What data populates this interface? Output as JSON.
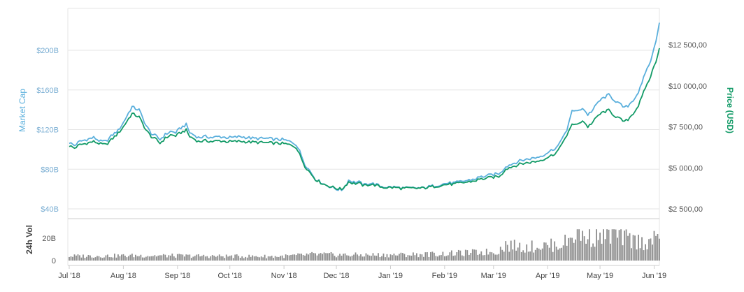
{
  "chart_data": {
    "type": "line",
    "colors": {
      "market_cap": "#5aafdc",
      "price": "#119a66",
      "volume": "#8c8c8c",
      "grid": "#e6e6e6",
      "tick_text": "#7aaed3"
    },
    "x_labels": [
      "Jul '18",
      "Aug '18",
      "Sep '18",
      "Oct '18",
      "Nov '18",
      "Dec '18",
      "Jan '19",
      "Feb '19",
      "Mar '19",
      "Apr '19",
      "May '19",
      "Jun '19"
    ],
    "left_axis": {
      "label": "Market Cap",
      "min": 40,
      "max": 240,
      "ticks": [
        {
          "value": 40,
          "label": "$40B"
        },
        {
          "value": 80,
          "label": "$80B"
        },
        {
          "value": 120,
          "label": "$120B"
        },
        {
          "value": 160,
          "label": "$160B"
        },
        {
          "value": 200,
          "label": "$200B"
        }
      ]
    },
    "right_axis": {
      "label": "Price (USD)",
      "min": 2500,
      "max": 12500,
      "ticks": [
        {
          "value": 2500,
          "label": "$2 500,00"
        },
        {
          "value": 5000,
          "label": "$5 000,00"
        },
        {
          "value": 7500,
          "label": "$7 500,00"
        },
        {
          "value": 10000,
          "label": "$10 000,00"
        },
        {
          "value": 12500,
          "label": "$12 500,00"
        }
      ]
    },
    "volume_axis": {
      "label": "24h Vol",
      "min": 0,
      "max": 30,
      "ticks": [
        {
          "value": 0,
          "label": "0"
        },
        {
          "value": 20,
          "label": "20B"
        }
      ]
    },
    "series": [
      {
        "name": "Market Cap",
        "axis": "left",
        "points": [
          [
            0,
            107
          ],
          [
            3,
            104
          ],
          [
            6,
            108
          ],
          [
            10,
            110
          ],
          [
            14,
            112
          ],
          [
            18,
            108
          ],
          [
            21,
            108
          ],
          [
            25,
            115
          ],
          [
            28,
            119
          ],
          [
            31,
            127
          ],
          [
            34,
            137
          ],
          [
            36,
            143
          ],
          [
            38,
            141
          ],
          [
            40,
            140
          ],
          [
            42,
            132
          ],
          [
            44,
            124
          ],
          [
            47,
            116
          ],
          [
            50,
            113
          ],
          [
            52,
            110
          ],
          [
            55,
            115
          ],
          [
            58,
            118
          ],
          [
            61,
            117
          ],
          [
            64,
            122
          ],
          [
            67,
            125
          ],
          [
            69,
            117
          ],
          [
            71,
            115
          ],
          [
            74,
            112
          ],
          [
            78,
            113
          ],
          [
            82,
            112
          ],
          [
            86,
            113
          ],
          [
            90,
            112
          ],
          [
            94,
            112
          ],
          [
            98,
            113
          ],
          [
            102,
            112
          ],
          [
            106,
            111
          ],
          [
            110,
            111
          ],
          [
            114,
            111
          ],
          [
            118,
            110
          ],
          [
            122,
            110
          ],
          [
            124,
            109
          ],
          [
            126,
            108
          ],
          [
            128,
            107
          ],
          [
            130,
            105
          ],
          [
            132,
            98
          ],
          [
            135,
            85
          ],
          [
            138,
            78
          ],
          [
            141,
            70
          ],
          [
            144,
            67
          ],
          [
            147,
            64
          ],
          [
            150,
            62
          ],
          [
            153,
            60
          ],
          [
            156,
            59
          ],
          [
            158,
            63
          ],
          [
            160,
            69
          ],
          [
            163,
            67
          ],
          [
            166,
            67
          ],
          [
            169,
            64
          ],
          [
            172,
            66
          ],
          [
            175,
            65
          ],
          [
            178,
            63
          ],
          [
            181,
            62
          ],
          [
            184,
            62
          ],
          [
            187,
            62
          ],
          [
            190,
            61
          ],
          [
            193,
            61
          ],
          [
            196,
            61
          ],
          [
            199,
            61
          ],
          [
            202,
            61
          ],
          [
            205,
            62
          ],
          [
            208,
            63
          ],
          [
            211,
            64
          ],
          [
            214,
            65
          ],
          [
            217,
            66
          ],
          [
            220,
            66
          ],
          [
            223,
            67
          ],
          [
            226,
            68
          ],
          [
            229,
            69
          ],
          [
            232,
            70
          ],
          [
            235,
            72
          ],
          [
            238,
            73
          ],
          [
            241,
            74
          ],
          [
            244,
            75
          ],
          [
            247,
            76
          ],
          [
            250,
            83
          ],
          [
            253,
            85
          ],
          [
            256,
            87
          ],
          [
            259,
            89
          ],
          [
            262,
            90
          ],
          [
            265,
            91
          ],
          [
            268,
            92
          ],
          [
            271,
            94
          ],
          [
            273,
            96
          ],
          [
            275,
            98
          ],
          [
            277,
            100
          ],
          [
            279,
            102
          ],
          [
            281,
            106
          ],
          [
            283,
            115
          ],
          [
            285,
            118
          ],
          [
            288,
            140
          ],
          [
            291,
            138
          ],
          [
            294,
            142
          ],
          [
            297,
            135
          ],
          [
            300,
            140
          ],
          [
            303,
            148
          ],
          [
            306,
            152
          ],
          [
            309,
            155
          ],
          [
            312,
            150
          ],
          [
            315,
            146
          ],
          [
            318,
            142
          ],
          [
            320,
            144
          ],
          [
            322,
            148
          ],
          [
            324,
            152
          ],
          [
            326,
            158
          ],
          [
            328,
            166
          ],
          [
            330,
            178
          ],
          [
            332,
            185
          ],
          [
            334,
            195
          ],
          [
            336,
            210
          ],
          [
            338,
            228
          ]
        ]
      },
      {
        "name": "Price (USD)",
        "axis": "right",
        "points": [
          [
            0,
            6350
          ],
          [
            3,
            6200
          ],
          [
            6,
            6400
          ],
          [
            10,
            6500
          ],
          [
            14,
            6600
          ],
          [
            18,
            6450
          ],
          [
            21,
            6400
          ],
          [
            25,
            6800
          ],
          [
            28,
            7100
          ],
          [
            31,
            7500
          ],
          [
            34,
            8000
          ],
          [
            36,
            8300
          ],
          [
            38,
            8200
          ],
          [
            40,
            8100
          ],
          [
            42,
            7700
          ],
          [
            44,
            7300
          ],
          [
            47,
            6900
          ],
          [
            50,
            6700
          ],
          [
            52,
            6500
          ],
          [
            55,
            6800
          ],
          [
            58,
            7000
          ],
          [
            61,
            6950
          ],
          [
            64,
            7150
          ],
          [
            67,
            7300
          ],
          [
            69,
            6900
          ],
          [
            71,
            6800
          ],
          [
            74,
            6600
          ],
          [
            78,
            6650
          ],
          [
            82,
            6600
          ],
          [
            86,
            6650
          ],
          [
            90,
            6600
          ],
          [
            94,
            6600
          ],
          [
            98,
            6620
          ],
          [
            102,
            6580
          ],
          [
            106,
            6560
          ],
          [
            110,
            6540
          ],
          [
            114,
            6520
          ],
          [
            118,
            6500
          ],
          [
            122,
            6480
          ],
          [
            124,
            6450
          ],
          [
            126,
            6400
          ],
          [
            128,
            6350
          ],
          [
            130,
            6250
          ],
          [
            132,
            5800
          ],
          [
            135,
            5100
          ],
          [
            138,
            4700
          ],
          [
            141,
            4300
          ],
          [
            144,
            4100
          ],
          [
            147,
            3950
          ],
          [
            150,
            3850
          ],
          [
            153,
            3750
          ],
          [
            156,
            3700
          ],
          [
            158,
            3900
          ],
          [
            160,
            4150
          ],
          [
            163,
            4050
          ],
          [
            166,
            4050
          ],
          [
            169,
            3900
          ],
          [
            172,
            4000
          ],
          [
            175,
            3950
          ],
          [
            178,
            3850
          ],
          [
            181,
            3800
          ],
          [
            184,
            3800
          ],
          [
            187,
            3800
          ],
          [
            190,
            3750
          ],
          [
            193,
            3750
          ],
          [
            196,
            3750
          ],
          [
            199,
            3750
          ],
          [
            202,
            3760
          ],
          [
            205,
            3800
          ],
          [
            208,
            3850
          ],
          [
            211,
            3900
          ],
          [
            214,
            3950
          ],
          [
            217,
            4000
          ],
          [
            220,
            4000
          ],
          [
            223,
            4050
          ],
          [
            226,
            4100
          ],
          [
            229,
            4150
          ],
          [
            232,
            4200
          ],
          [
            235,
            4300
          ],
          [
            238,
            4350
          ],
          [
            241,
            4400
          ],
          [
            244,
            4450
          ],
          [
            247,
            4500
          ],
          [
            250,
            4950
          ],
          [
            253,
            5050
          ],
          [
            256,
            5150
          ],
          [
            259,
            5250
          ],
          [
            262,
            5300
          ],
          [
            265,
            5350
          ],
          [
            268,
            5400
          ],
          [
            271,
            5500
          ],
          [
            273,
            5600
          ],
          [
            275,
            5700
          ],
          [
            277,
            5800
          ],
          [
            279,
            5950
          ],
          [
            281,
            6200
          ],
          [
            283,
            6700
          ],
          [
            285,
            6900
          ],
          [
            288,
            7700
          ],
          [
            291,
            7600
          ],
          [
            294,
            7900
          ],
          [
            297,
            7500
          ],
          [
            300,
            7800
          ],
          [
            303,
            8200
          ],
          [
            306,
            8400
          ],
          [
            309,
            8500
          ],
          [
            312,
            8200
          ],
          [
            315,
            8000
          ],
          [
            318,
            7800
          ],
          [
            320,
            7950
          ],
          [
            322,
            8200
          ],
          [
            324,
            8450
          ],
          [
            326,
            8800
          ],
          [
            328,
            9300
          ],
          [
            330,
            9900
          ],
          [
            332,
            10300
          ],
          [
            334,
            10900
          ],
          [
            336,
            11500
          ],
          [
            338,
            12300
          ]
        ]
      },
      {
        "name": "24h Vol",
        "axis": "volume",
        "points": [
          [
            0,
            4.0
          ],
          [
            20,
            4.2
          ],
          [
            40,
            4.5
          ],
          [
            60,
            4.3
          ],
          [
            80,
            4.0
          ],
          [
            100,
            3.8
          ],
          [
            120,
            3.7
          ],
          [
            130,
            4.5
          ],
          [
            140,
            5.5
          ],
          [
            150,
            5.2
          ],
          [
            160,
            5.0
          ],
          [
            180,
            5.0
          ],
          [
            200,
            5.4
          ],
          [
            215,
            6.0
          ],
          [
            230,
            7.0
          ],
          [
            245,
            8.0
          ],
          [
            250,
            14.0
          ],
          [
            260,
            12.0
          ],
          [
            270,
            13.0
          ],
          [
            280,
            14.0
          ],
          [
            285,
            17.0
          ],
          [
            290,
            25.0
          ],
          [
            295,
            22.0
          ],
          [
            300,
            21.0
          ],
          [
            310,
            24.0
          ],
          [
            320,
            19.0
          ],
          [
            330,
            16.0
          ],
          [
            338,
            20.0
          ]
        ]
      }
    ]
  }
}
